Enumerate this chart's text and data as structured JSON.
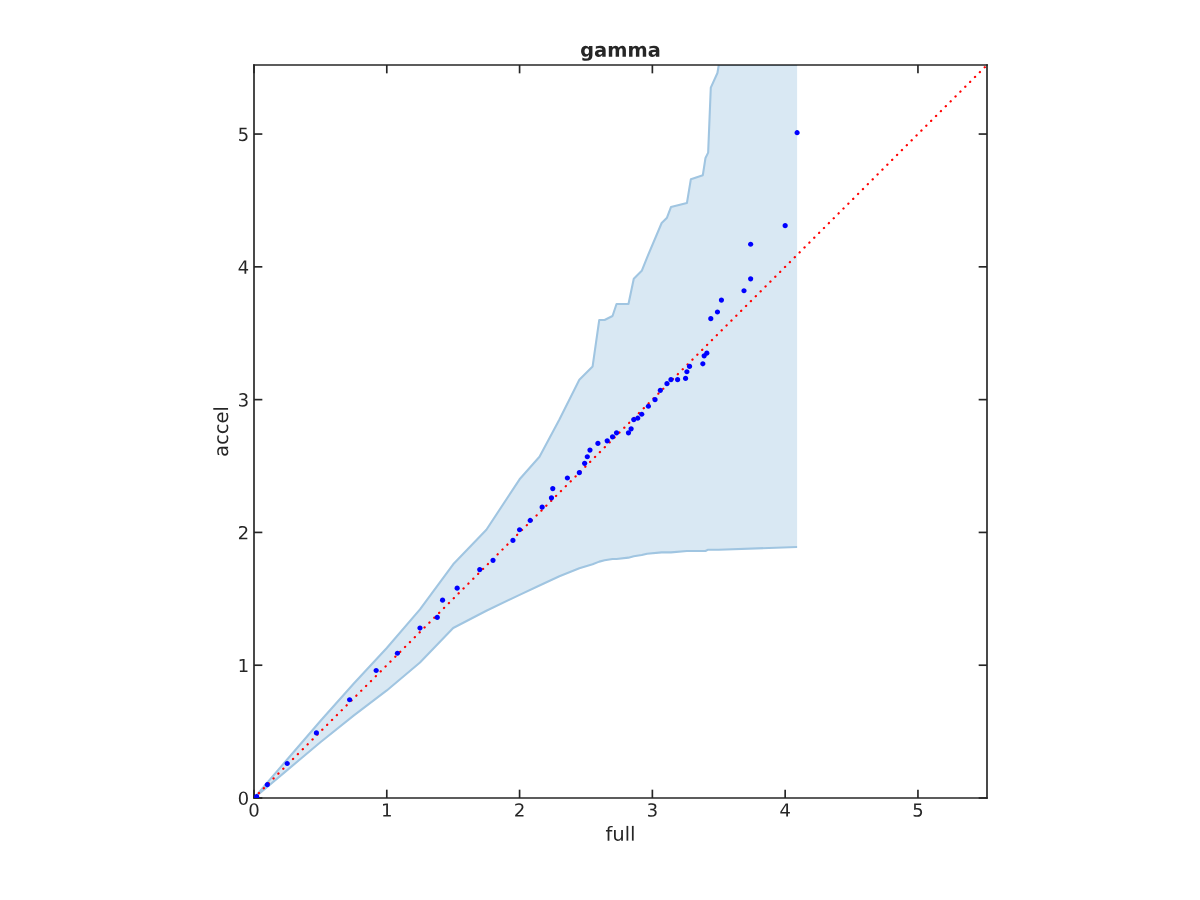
{
  "chart_data": {
    "type": "scatter",
    "title": "gamma",
    "xlabel": "full",
    "ylabel": "accel",
    "xlim": [
      0,
      5.52
    ],
    "ylim": [
      0,
      5.52
    ],
    "xticks": [
      0,
      1,
      2,
      3,
      4,
      5
    ],
    "yticks": [
      0,
      1,
      2,
      3,
      4,
      5
    ],
    "grid": false,
    "legend": false,
    "series": [
      {
        "type": "area",
        "color": "#d9e8f3",
        "x": [
          0,
          0.25,
          0.5,
          0.75,
          1,
          1.25,
          1.5,
          1.75,
          2,
          2.15,
          2.3,
          2.45,
          2.55,
          2.6,
          2.64,
          2.7,
          2.73,
          2.82,
          2.86,
          2.92,
          2.96,
          3.07,
          3.11,
          3.14,
          3.26,
          3.29,
          3.38,
          3.4,
          3.42,
          3.44,
          3.49,
          3.5,
          4.09
        ],
        "values": [
          null,
          null,
          null,
          null,
          null,
          null,
          null,
          null,
          null,
          null,
          null,
          null,
          null,
          null,
          null,
          null,
          null,
          null,
          null,
          null,
          null,
          null,
          null,
          null,
          null,
          null,
          null,
          null,
          null,
          null,
          null,
          null,
          null
        ],
        "upper": [
          0,
          0.29,
          0.58,
          0.86,
          1.13,
          1.42,
          1.76,
          2.02,
          2.4,
          2.57,
          2.85,
          3.15,
          3.25,
          3.6,
          3.6,
          3.63,
          3.72,
          3.72,
          3.91,
          3.97,
          4.07,
          4.33,
          4.37,
          4.45,
          4.48,
          4.66,
          4.69,
          4.82,
          4.86,
          5.35,
          5.46,
          5.52,
          5.52
        ],
        "lower": [
          0,
          0.21,
          0.42,
          0.62,
          0.81,
          1.02,
          1.28,
          1.41,
          1.53,
          1.6,
          1.67,
          1.73,
          1.76,
          1.78,
          1.79,
          1.8,
          1.8,
          1.81,
          1.82,
          1.83,
          1.84,
          1.85,
          1.85,
          1.85,
          1.86,
          1.86,
          1.86,
          1.86,
          1.87,
          1.87,
          1.87,
          1.87,
          1.89
        ]
      },
      {
        "type": "line",
        "color": "#ff0000",
        "line_style": "dotted",
        "x": [
          0,
          5.52
        ],
        "values": [
          0,
          5.52
        ]
      },
      {
        "color": "#0000ff",
        "marker": "circle",
        "x": [
          0.02,
          0.1,
          0.25,
          0.47,
          0.72,
          0.92,
          1.08,
          1.25,
          1.38,
          1.42,
          1.53,
          1.7,
          1.8,
          1.95,
          2.0,
          2.08,
          2.17,
          2.24,
          2.25,
          2.36,
          2.45,
          2.49,
          2.51,
          2.53,
          2.59,
          2.66,
          2.7,
          2.73,
          2.82,
          2.84,
          2.86,
          2.89,
          2.92,
          2.97,
          3.02,
          3.06,
          3.11,
          3.14,
          3.19,
          3.25,
          3.26,
          3.28,
          3.38,
          3.39,
          3.41,
          3.44,
          3.49,
          3.52,
          3.69,
          3.74,
          3.74,
          4.0,
          4.09
        ],
        "values": [
          0.01,
          0.1,
          0.26,
          0.49,
          0.74,
          0.96,
          1.09,
          1.28,
          1.36,
          1.49,
          1.58,
          1.72,
          1.79,
          1.94,
          2.02,
          2.09,
          2.19,
          2.26,
          2.33,
          2.41,
          2.45,
          2.52,
          2.57,
          2.62,
          2.67,
          2.69,
          2.72,
          2.75,
          2.75,
          2.78,
          2.85,
          2.86,
          2.89,
          2.95,
          3.0,
          3.07,
          3.12,
          3.15,
          3.15,
          3.16,
          3.21,
          3.25,
          3.27,
          3.33,
          3.35,
          3.61,
          3.66,
          3.75,
          3.82,
          3.91,
          4.17,
          4.31,
          5.01
        ]
      }
    ]
  }
}
